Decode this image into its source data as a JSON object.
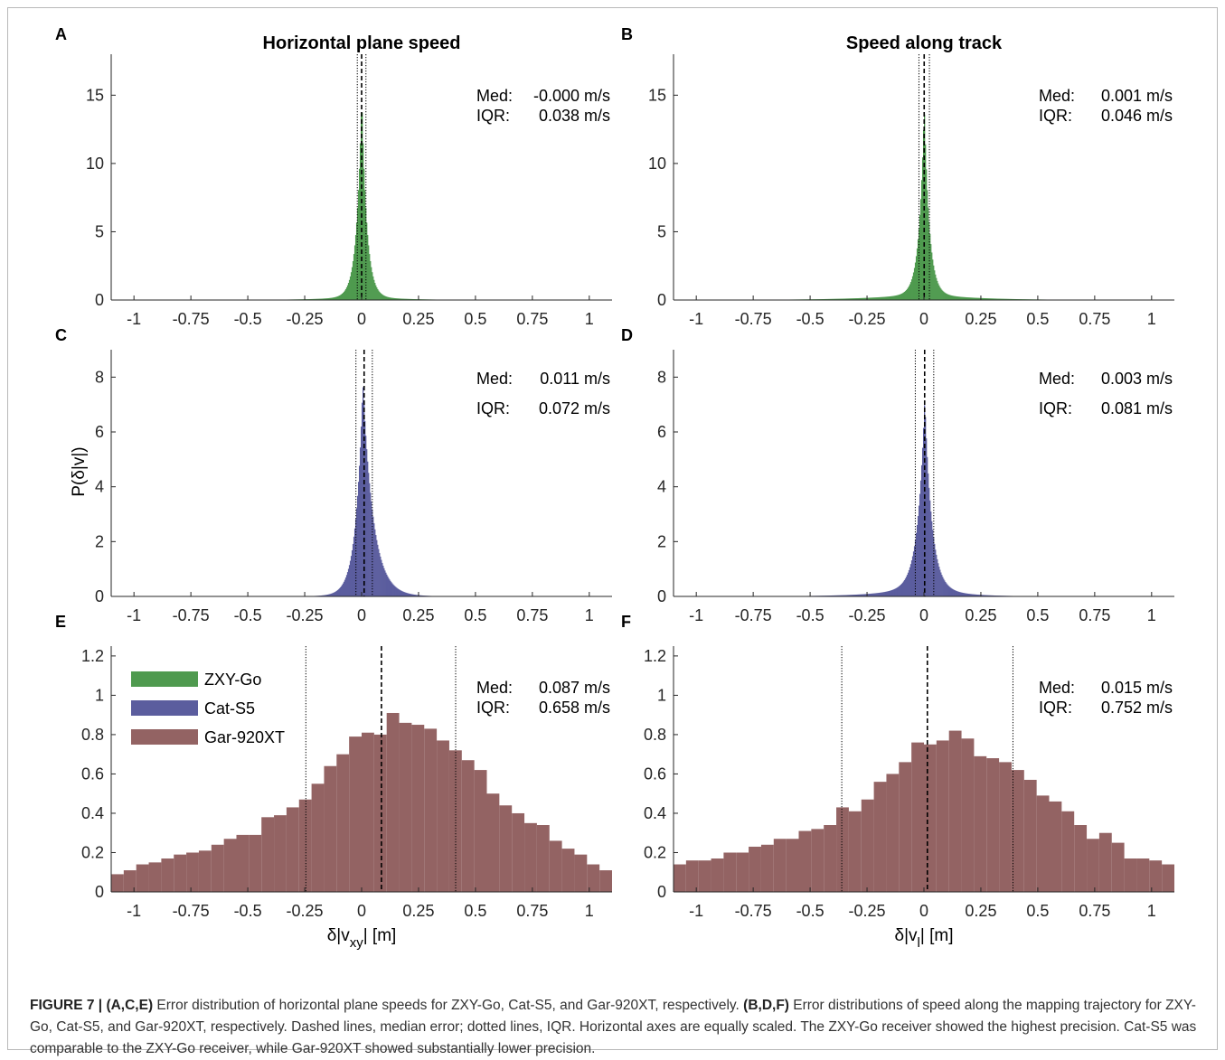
{
  "figure": {
    "panels": [
      {
        "letter": "A",
        "title": "Horizontal plane speed"
      },
      {
        "letter": "B",
        "title": "Speed along track"
      },
      {
        "letter": "C",
        "title": ""
      },
      {
        "letter": "D",
        "title": ""
      },
      {
        "letter": "E",
        "title": ""
      },
      {
        "letter": "F",
        "title": ""
      }
    ],
    "ylabel": "P(δ|v|)",
    "xlabel_left": {
      "main": "δ|v",
      "sub": "xy",
      "tail": "| [m]"
    },
    "xlabel_right": {
      "main": "δ|v",
      "sub": "l",
      "tail": "| [m]"
    }
  },
  "caption": {
    "lead": "FIGURE 7 | ",
    "part1_bold": "(A,C,E)",
    "part1_text": " Error distribution of horizontal plane speeds for ZXY-Go, Cat-S5, and Gar-920XT, respectively. ",
    "part2_bold": "(B,D,F)",
    "part2_text": " Error distributions of speed along the mapping trajectory for ZXY-Go, Cat-S5, and Gar-920XT, respectively. Dashed lines, median error; dotted lines, IQR. Horizontal axes are equally scaled. The ZXY-Go receiver showed the highest precision. Cat-S5 was comparable to the ZXY-Go receiver, while Gar-920XT showed substantially lower precision."
  },
  "chart_data": [
    {
      "panel": "A",
      "type": "bar",
      "title": "Horizontal plane speed",
      "series_name": "ZXY-Go",
      "color": "#4f9a4f",
      "xlim": [
        -1.1,
        1.1
      ],
      "ylim": [
        0,
        18
      ],
      "xticks": [
        -1,
        -0.75,
        -0.5,
        -0.25,
        0,
        0.25,
        0.5,
        0.75,
        1
      ],
      "xtick_labels": [
        "-1",
        "-0.75",
        "-0.5",
        "-0.25",
        "0",
        "0.25",
        "0.5",
        "0.75",
        "1"
      ],
      "yticks": [
        0,
        5,
        10,
        15
      ],
      "ytick_labels": [
        "0",
        "5",
        "10",
        "15"
      ],
      "distribution": {
        "peak_x": 0.0,
        "peak_y": 15.0,
        "scale_left": 0.022,
        "scale_right": 0.022,
        "tail_left": 0.15,
        "tail_right": 0.15,
        "tail_weight": 0.02,
        "bin_width": 0.004
      },
      "median": -0.0,
      "iqr_lines": [
        -0.019,
        0.019
      ],
      "stats": {
        "med_label": "Med:",
        "med_value": "-0.000 m/s",
        "iqr_label": "IQR:",
        "iqr_value": "0.038 m/s"
      }
    },
    {
      "panel": "B",
      "type": "bar",
      "title": "Speed along track",
      "series_name": "ZXY-Go",
      "color": "#4f9a4f",
      "xlim": [
        -1.1,
        1.1
      ],
      "ylim": [
        0,
        18
      ],
      "xticks": [
        -1,
        -0.75,
        -0.5,
        -0.25,
        0,
        0.25,
        0.5,
        0.75,
        1
      ],
      "xtick_labels": [
        "-1",
        "-0.75",
        "-0.5",
        "-0.25",
        "0",
        "0.25",
        "0.5",
        "0.75",
        "1"
      ],
      "yticks": [
        0,
        5,
        10,
        15
      ],
      "ytick_labels": [
        "0",
        "5",
        "10",
        "15"
      ],
      "distribution": {
        "peak_x": 0.001,
        "peak_y": 14.2,
        "scale_left": 0.022,
        "scale_right": 0.022,
        "tail_left": 0.22,
        "tail_right": 0.2,
        "tail_weight": 0.035,
        "bin_width": 0.004
      },
      "median": 0.001,
      "iqr_lines": [
        -0.022,
        0.024
      ],
      "stats": {
        "med_label": "Med:",
        "med_value": "0.001 m/s",
        "iqr_label": "IQR:",
        "iqr_value": "0.046 m/s"
      }
    },
    {
      "panel": "C",
      "type": "bar",
      "title": "",
      "series_name": "Cat-S5",
      "color": "#5b5d9e",
      "xlim": [
        -1.1,
        1.1
      ],
      "ylim": [
        0,
        9
      ],
      "xticks": [
        -1,
        -0.75,
        -0.5,
        -0.25,
        0,
        0.25,
        0.5,
        0.75,
        1
      ],
      "xtick_labels": [
        "-1",
        "-0.75",
        "-0.5",
        "-0.25",
        "0",
        "0.25",
        "0.5",
        "0.75",
        "1"
      ],
      "yticks": [
        0,
        2,
        4,
        6,
        8
      ],
      "ytick_labels": [
        "0",
        "2",
        "4",
        "6",
        "8"
      ],
      "distribution": {
        "peak_x": 0.005,
        "peak_y": 7.8,
        "scale_left": 0.03,
        "scale_right": 0.045,
        "tail_left": 0.08,
        "tail_right": 0.1,
        "tail_weight": 0.02,
        "bin_width": 0.004
      },
      "median": 0.011,
      "iqr_lines": [
        -0.025,
        0.047
      ],
      "stats": {
        "med_label": "Med:",
        "med_value": "0.011 m/s",
        "iqr_label": "IQR:",
        "iqr_value": "0.072 m/s"
      }
    },
    {
      "panel": "D",
      "type": "bar",
      "title": "",
      "series_name": "Cat-S5",
      "color": "#5b5d9e",
      "xlim": [
        -1.1,
        1.1
      ],
      "ylim": [
        0,
        9
      ],
      "xticks": [
        -1,
        -0.75,
        -0.5,
        -0.25,
        0,
        0.25,
        0.5,
        0.75,
        1
      ],
      "xtick_labels": [
        "-1",
        "-0.75",
        "-0.5",
        "-0.25",
        "0",
        "0.25",
        "0.5",
        "0.75",
        "1"
      ],
      "yticks": [
        0,
        2,
        4,
        6,
        8
      ],
      "ytick_labels": [
        "0",
        "2",
        "4",
        "6",
        "8"
      ],
      "distribution": {
        "peak_x": 0.003,
        "peak_y": 7.2,
        "scale_left": 0.03,
        "scale_right": 0.03,
        "tail_left": 0.16,
        "tail_right": 0.12,
        "tail_weight": 0.06,
        "bin_width": 0.004
      },
      "median": 0.003,
      "iqr_lines": [
        -0.038,
        0.043
      ],
      "stats": {
        "med_label": "Med:",
        "med_value": "0.003 m/s",
        "iqr_label": "IQR:",
        "iqr_value": "0.081 m/s"
      }
    },
    {
      "panel": "E",
      "type": "bar",
      "title": "",
      "series_name": "Gar-920XT",
      "color": "#936363",
      "xlim": [
        -1.1,
        1.1
      ],
      "ylim": [
        0,
        1.25
      ],
      "xticks": [
        -1,
        -0.75,
        -0.5,
        -0.25,
        0,
        0.25,
        0.5,
        0.75,
        1
      ],
      "xtick_labels": [
        "-1",
        "-0.75",
        "-0.5",
        "-0.25",
        "0",
        "0.25",
        "0.5",
        "0.75",
        "1"
      ],
      "yticks": [
        0,
        0.2,
        0.4,
        0.6,
        0.8,
        1,
        1.2
      ],
      "ytick_labels": [
        "0",
        "0.2",
        "0.4",
        "0.6",
        "0.8",
        "1",
        "1.2"
      ],
      "bin_start": -1.1,
      "bin_width": 0.055,
      "values": [
        0.09,
        0.11,
        0.14,
        0.15,
        0.17,
        0.19,
        0.2,
        0.21,
        0.24,
        0.27,
        0.29,
        0.29,
        0.38,
        0.39,
        0.43,
        0.47,
        0.55,
        0.64,
        0.7,
        0.79,
        0.81,
        0.8,
        0.91,
        0.86,
        0.85,
        0.83,
        0.77,
        0.72,
        0.67,
        0.62,
        0.5,
        0.44,
        0.4,
        0.35,
        0.34,
        0.26,
        0.22,
        0.19,
        0.14,
        0.11,
        0.12
      ],
      "median": 0.087,
      "iqr_lines": [
        -0.245,
        0.413
      ],
      "stats": {
        "med_label": "Med:",
        "med_value": "0.087 m/s",
        "iqr_label": "IQR:",
        "iqr_value": "0.658 m/s"
      },
      "legend": {
        "placement": "top-left",
        "entries": [
          {
            "label": "ZXY-Go",
            "color": "#4f9a4f"
          },
          {
            "label": "Cat-S5",
            "color": "#5b5d9e"
          },
          {
            "label": "Gar-920XT",
            "color": "#936363"
          }
        ]
      }
    },
    {
      "panel": "F",
      "type": "bar",
      "title": "",
      "series_name": "Gar-920XT",
      "color": "#936363",
      "xlim": [
        -1.1,
        1.1
      ],
      "ylim": [
        0,
        1.25
      ],
      "xticks": [
        -1,
        -0.75,
        -0.5,
        -0.25,
        0,
        0.25,
        0.5,
        0.75,
        1
      ],
      "xtick_labels": [
        "-1",
        "-0.75",
        "-0.5",
        "-0.25",
        "0",
        "0.25",
        "0.5",
        "0.75",
        "1"
      ],
      "yticks": [
        0,
        0.2,
        0.4,
        0.6,
        0.8,
        1,
        1.2
      ],
      "ytick_labels": [
        "0",
        "0.2",
        "0.4",
        "0.6",
        "0.8",
        "1",
        "1.2"
      ],
      "bin_start": -1.1,
      "bin_width": 0.055,
      "values": [
        0.14,
        0.16,
        0.16,
        0.17,
        0.2,
        0.2,
        0.23,
        0.24,
        0.27,
        0.27,
        0.31,
        0.32,
        0.34,
        0.43,
        0.41,
        0.47,
        0.56,
        0.6,
        0.66,
        0.76,
        0.75,
        0.77,
        0.82,
        0.78,
        0.69,
        0.68,
        0.66,
        0.62,
        0.57,
        0.49,
        0.46,
        0.41,
        0.34,
        0.27,
        0.3,
        0.25,
        0.17,
        0.17,
        0.16,
        0.14,
        0.1
      ],
      "median": 0.015,
      "iqr_lines": [
        -0.361,
        0.391
      ],
      "stats": {
        "med_label": "Med:",
        "med_value": "0.015 m/s",
        "iqr_label": "IQR:",
        "iqr_value": "0.752 m/s"
      }
    }
  ]
}
